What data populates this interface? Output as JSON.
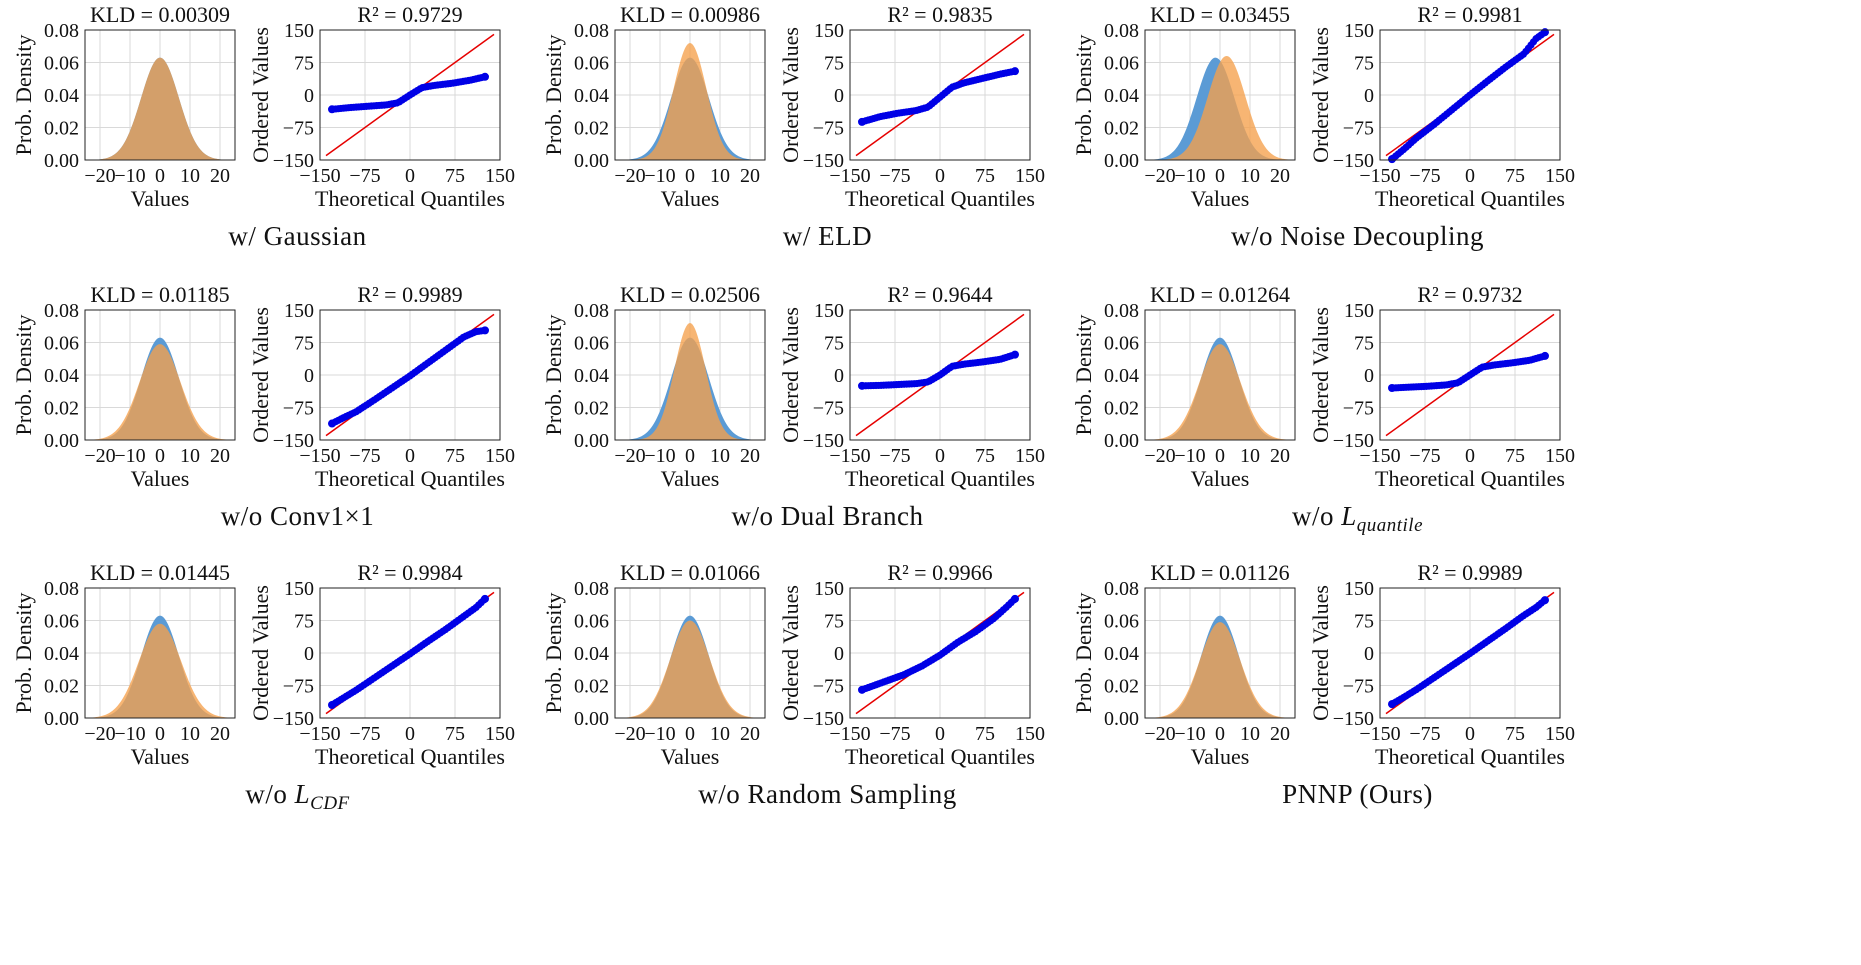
{
  "colors": {
    "hist_blue": "#5b9bd5",
    "hist_orange": "#f5a04c",
    "overlap": "#c8823c",
    "qq_points": "#0000e6",
    "qq_line": "#e60000",
    "grid": "#d9d9d9"
  },
  "chart_data": [
    {
      "caption": "w/ Gaussian",
      "kld_title": "KLD = 0.00309",
      "r2_title": "R² = 0.9729",
      "hist": {
        "type": "area",
        "xlabel": "Values",
        "ylabel": "Prob. Density",
        "xlim": [
          -25,
          25
        ],
        "ylim": [
          0,
          0.08
        ],
        "xticks": [
          "−20",
          "−10",
          "0",
          "10",
          "20"
        ],
        "yticks": [
          "0.00",
          "0.02",
          "0.04",
          "0.06",
          "0.08"
        ],
        "series": [
          {
            "sigma": 6.3,
            "peak": 0.063
          },
          {
            "sigma": 6.3,
            "peak": 0.063
          }
        ]
      },
      "qq": {
        "type": "scatter",
        "xlabel": "Theoretical Quantiles",
        "ylabel": "Ordered Values",
        "xlim": [
          -150,
          150
        ],
        "ylim": [
          -150,
          150
        ],
        "xticks": [
          "−150",
          "−75",
          "0",
          "75",
          "150"
        ],
        "yticks": [
          "−150",
          "−75",
          "0",
          "75",
          "150"
        ],
        "point_x": [
          -130,
          -100,
          -70,
          -40,
          -20,
          0,
          20,
          40,
          70,
          100,
          125
        ],
        "point_y": [
          -33,
          -29,
          -26,
          -23,
          -18,
          0,
          17,
          22,
          27,
          34,
          42
        ]
      }
    },
    {
      "caption": "w/ ELD",
      "kld_title": "KLD = 0.00986",
      "r2_title": "R² = 0.9835",
      "hist": {
        "type": "area",
        "xlabel": "Values",
        "ylabel": "Prob. Density",
        "xlim": [
          -25,
          25
        ],
        "ylim": [
          0,
          0.08
        ],
        "xticks": [
          "−20",
          "−10",
          "0",
          "10",
          "20"
        ],
        "yticks": [
          "0.00",
          "0.02",
          "0.04",
          "0.06",
          "0.08"
        ],
        "series": [
          {
            "sigma": 6.3,
            "peak": 0.063
          },
          {
            "sigma": 5.5,
            "peak": 0.072
          }
        ]
      },
      "qq": {
        "type": "scatter",
        "xlabel": "Theoretical Quantiles",
        "ylabel": "Ordered Values",
        "xlim": [
          -150,
          150
        ],
        "ylim": [
          -150,
          150
        ],
        "xticks": [
          "−150",
          "−75",
          "0",
          "75",
          "150"
        ],
        "yticks": [
          "−150",
          "−75",
          "0",
          "75",
          "150"
        ],
        "point_x": [
          -130,
          -100,
          -70,
          -40,
          -20,
          0,
          20,
          40,
          70,
          100,
          125
        ],
        "point_y": [
          -62,
          -50,
          -42,
          -36,
          -28,
          -5,
          18,
          28,
          38,
          48,
          55
        ]
      }
    },
    {
      "caption": "w/o Noise Decoupling",
      "kld_title": "KLD = 0.03455",
      "r2_title": "R² = 0.9981",
      "hist": {
        "type": "area",
        "xlabel": "Values",
        "ylabel": "Prob. Density",
        "xlim": [
          -25,
          25
        ],
        "ylim": [
          0,
          0.08
        ],
        "xticks": [
          "−20",
          "−10",
          "0",
          "10",
          "20"
        ],
        "yticks": [
          "0.00",
          "0.02",
          "0.04",
          "0.06",
          "0.08"
        ],
        "series": [
          {
            "sigma": 6.3,
            "peak": 0.063,
            "mu": -1.5
          },
          {
            "sigma": 6.3,
            "peak": 0.064,
            "mu": 2.2
          }
        ]
      },
      "qq": {
        "type": "scatter",
        "xlabel": "Theoretical Quantiles",
        "ylabel": "Ordered Values",
        "xlim": [
          -150,
          150
        ],
        "ylim": [
          -150,
          150
        ],
        "xticks": [
          "−150",
          "−75",
          "0",
          "75",
          "150"
        ],
        "yticks": [
          "−150",
          "−75",
          "0",
          "75",
          "150"
        ],
        "point_x": [
          -130,
          -110,
          -90,
          -60,
          -30,
          0,
          30,
          60,
          90,
          110,
          125
        ],
        "point_y": [
          -148,
          -125,
          -100,
          -68,
          -34,
          0,
          33,
          65,
          95,
          130,
          145
        ]
      }
    },
    {
      "caption": "w/o Conv1×1",
      "kld_title": "KLD = 0.01185",
      "r2_title": "R² = 0.9989",
      "hist": {
        "type": "area",
        "xlabel": "Values",
        "ylabel": "Prob. Density",
        "xlim": [
          -25,
          25
        ],
        "ylim": [
          0,
          0.08
        ],
        "xticks": [
          "−20",
          "−10",
          "0",
          "10",
          "20"
        ],
        "yticks": [
          "0.00",
          "0.02",
          "0.04",
          "0.06",
          "0.08"
        ],
        "series": [
          {
            "sigma": 6.3,
            "peak": 0.063
          },
          {
            "sigma": 6.8,
            "peak": 0.059
          }
        ]
      },
      "qq": {
        "type": "scatter",
        "xlabel": "Theoretical Quantiles",
        "ylabel": "Ordered Values",
        "xlim": [
          -150,
          150
        ],
        "ylim": [
          -150,
          150
        ],
        "xticks": [
          "−150",
          "−75",
          "0",
          "75",
          "150"
        ],
        "yticks": [
          "−150",
          "−75",
          "0",
          "75",
          "150"
        ],
        "point_x": [
          -130,
          -110,
          -90,
          -60,
          -30,
          0,
          30,
          60,
          90,
          110,
          125
        ],
        "point_y": [
          -112,
          -98,
          -85,
          -58,
          -30,
          -2,
          28,
          58,
          88,
          100,
          103
        ]
      }
    },
    {
      "caption": "w/o Dual Branch",
      "kld_title": "KLD = 0.02506",
      "r2_title": "R² = 0.9644",
      "hist": {
        "type": "area",
        "xlabel": "Values",
        "ylabel": "Prob. Density",
        "xlim": [
          -25,
          25
        ],
        "ylim": [
          0,
          0.08
        ],
        "xticks": [
          "−20",
          "−10",
          "0",
          "10",
          "20"
        ],
        "yticks": [
          "0.00",
          "0.02",
          "0.04",
          "0.06",
          "0.08"
        ],
        "series": [
          {
            "sigma": 6.3,
            "peak": 0.063
          },
          {
            "sigma": 5.2,
            "peak": 0.072
          }
        ]
      },
      "qq": {
        "type": "scatter",
        "xlabel": "Theoretical Quantiles",
        "ylabel": "Ordered Values",
        "xlim": [
          -150,
          150
        ],
        "ylim": [
          -150,
          150
        ],
        "xticks": [
          "−150",
          "−75",
          "0",
          "75",
          "150"
        ],
        "yticks": [
          "−150",
          "−75",
          "0",
          "75",
          "150"
        ],
        "point_x": [
          -130,
          -100,
          -70,
          -40,
          -20,
          0,
          20,
          40,
          70,
          100,
          125
        ],
        "point_y": [
          -25,
          -24,
          -22,
          -20,
          -16,
          0,
          20,
          25,
          30,
          36,
          47
        ]
      }
    },
    {
      "caption": "w/o L",
      "caption_sub": "quantile",
      "kld_title": "KLD = 0.01264",
      "r2_title": "R² = 0.9732",
      "hist": {
        "type": "area",
        "xlabel": "Values",
        "ylabel": "Prob. Density",
        "xlim": [
          -25,
          25
        ],
        "ylim": [
          0,
          0.08
        ],
        "xticks": [
          "−20",
          "−10",
          "0",
          "10",
          "20"
        ],
        "yticks": [
          "0.00",
          "0.02",
          "0.04",
          "0.06",
          "0.08"
        ],
        "series": [
          {
            "sigma": 6.3,
            "peak": 0.063
          },
          {
            "sigma": 6.8,
            "peak": 0.059
          }
        ]
      },
      "qq": {
        "type": "scatter",
        "xlabel": "Theoretical Quantiles",
        "ylabel": "Ordered Values",
        "xlim": [
          -150,
          150
        ],
        "ylim": [
          -150,
          150
        ],
        "xticks": [
          "−150",
          "−75",
          "0",
          "75",
          "150"
        ],
        "yticks": [
          "−150",
          "−75",
          "0",
          "75",
          "150"
        ],
        "point_x": [
          -130,
          -100,
          -70,
          -40,
          -20,
          0,
          20,
          40,
          70,
          100,
          125
        ],
        "point_y": [
          -30,
          -28,
          -26,
          -23,
          -18,
          0,
          18,
          23,
          28,
          34,
          44
        ]
      }
    },
    {
      "caption": "w/o L",
      "caption_sub": "CDF",
      "kld_title": "KLD = 0.01445",
      "r2_title": "R² = 0.9984",
      "hist": {
        "type": "area",
        "xlabel": "Values",
        "ylabel": "Prob. Density",
        "xlim": [
          -25,
          25
        ],
        "ylim": [
          0,
          0.08
        ],
        "xticks": [
          "−20",
          "−10",
          "0",
          "10",
          "20"
        ],
        "yticks": [
          "0.00",
          "0.02",
          "0.04",
          "0.06",
          "0.08"
        ],
        "series": [
          {
            "sigma": 6.3,
            "peak": 0.063
          },
          {
            "sigma": 7.0,
            "peak": 0.058
          }
        ]
      },
      "qq": {
        "type": "scatter",
        "xlabel": "Theoretical Quantiles",
        "ylabel": "Ordered Values",
        "xlim": [
          -150,
          150
        ],
        "ylim": [
          -150,
          150
        ],
        "xticks": [
          "−150",
          "−75",
          "0",
          "75",
          "150"
        ],
        "yticks": [
          "−150",
          "−75",
          "0",
          "75",
          "150"
        ],
        "point_x": [
          -130,
          -110,
          -90,
          -60,
          -30,
          0,
          30,
          60,
          90,
          110,
          125
        ],
        "point_y": [
          -120,
          -103,
          -86,
          -58,
          -30,
          -2,
          27,
          55,
          85,
          105,
          125
        ]
      }
    },
    {
      "caption": "w/o Random Sampling",
      "kld_title": "KLD = 0.01066",
      "r2_title": "R² = 0.9966",
      "hist": {
        "type": "area",
        "xlabel": "Values",
        "ylabel": "Prob. Density",
        "xlim": [
          -25,
          25
        ],
        "ylim": [
          0,
          0.08
        ],
        "xticks": [
          "−20",
          "−10",
          "0",
          "10",
          "20"
        ],
        "yticks": [
          "0.00",
          "0.02",
          "0.04",
          "0.06",
          "0.08"
        ],
        "series": [
          {
            "sigma": 6.3,
            "peak": 0.063
          },
          {
            "sigma": 6.6,
            "peak": 0.06
          }
        ]
      },
      "qq": {
        "type": "scatter",
        "xlabel": "Theoretical Quantiles",
        "ylabel": "Ordered Values",
        "xlim": [
          -150,
          150
        ],
        "ylim": [
          -150,
          150
        ],
        "xticks": [
          "−150",
          "−75",
          "0",
          "75",
          "150"
        ],
        "yticks": [
          "−150",
          "−75",
          "0",
          "75",
          "150"
        ],
        "point_x": [
          -130,
          -110,
          -90,
          -60,
          -30,
          0,
          30,
          60,
          90,
          110,
          125
        ],
        "point_y": [
          -85,
          -75,
          -65,
          -50,
          -30,
          -5,
          25,
          50,
          80,
          105,
          125
        ]
      }
    },
    {
      "caption": "PNNP (Ours)",
      "kld_title": "KLD = 0.01126",
      "r2_title": "R² = 0.9989",
      "hist": {
        "type": "area",
        "xlabel": "Values",
        "ylabel": "Prob. Density",
        "xlim": [
          -25,
          25
        ],
        "ylim": [
          0,
          0.08
        ],
        "xticks": [
          "−20",
          "−10",
          "0",
          "10",
          "20"
        ],
        "yticks": [
          "0.00",
          "0.02",
          "0.04",
          "0.06",
          "0.08"
        ],
        "series": [
          {
            "sigma": 6.3,
            "peak": 0.063
          },
          {
            "sigma": 6.7,
            "peak": 0.059
          }
        ]
      },
      "qq": {
        "type": "scatter",
        "xlabel": "Theoretical Quantiles",
        "ylabel": "Ordered Values",
        "xlim": [
          -150,
          150
        ],
        "ylim": [
          -150,
          150
        ],
        "xticks": [
          "−150",
          "−75",
          "0",
          "75",
          "150"
        ],
        "yticks": [
          "−150",
          "−75",
          "0",
          "75",
          "150"
        ],
        "point_x": [
          -130,
          -110,
          -90,
          -60,
          -30,
          0,
          30,
          60,
          90,
          110,
          125
        ],
        "point_y": [
          -118,
          -102,
          -85,
          -57,
          -29,
          -1,
          28,
          57,
          87,
          105,
          122
        ]
      }
    }
  ]
}
